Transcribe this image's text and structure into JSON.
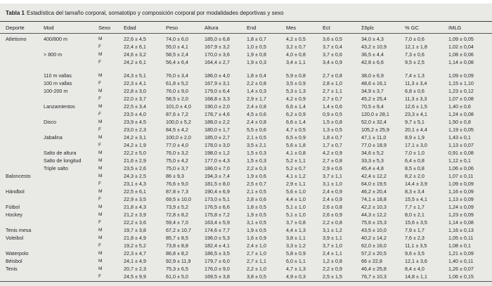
{
  "title": {
    "label": "Tabla 1",
    "text": "Estadística del tamaño corporal, somatotipo y composición corporal por modalidades deportivas y sexo"
  },
  "table": {
    "columns": [
      "Deporte",
      "Mod",
      "Sexo",
      "Edad",
      "Peso",
      "Altura",
      "End",
      "Mes",
      "Ect",
      "Σ6plc",
      "% GC",
      "IMLG"
    ],
    "column_keys": [
      "deporte",
      "mod",
      "sexo",
      "edad",
      "peso",
      "altura",
      "end",
      "mes",
      "ect",
      "sum6plc",
      "pct-gc",
      "imlg"
    ],
    "group_break_after": [
      3
    ],
    "rows": [
      [
        "Atletismo",
        "400/800 m",
        "M",
        "22,6 ± 4,5",
        "74,0 ± 6,0",
        "185,0 ± 6,8",
        "1,8 ± 0,7",
        "4,2 ± 0,5",
        "3,6 ± 0,5",
        "34,0 ± 4,3",
        "7,0 ± 0,6",
        "1,09 ± 0,05"
      ],
      [
        "",
        "",
        "F",
        "22,4 ± 6,1",
        "55,0 ± 4,1",
        "167,9 ± 3,2",
        "1,0 ± 0,5",
        "3,2 ± 0,7",
        "3,7 ± 0,4",
        "43,2 ± 10,9",
        "12,1 ± 1,8",
        "1,02 ± 0,04"
      ],
      [
        "",
        "> 800 m",
        "M",
        "24,6 ± 3,2",
        "58,5 ± 2,4",
        "170,0 ± 3,6",
        "1,9 ± 0,8",
        "4,0 ± 0,8",
        "3,7 ± 0,6",
        "36,5 ± 4,4",
        "7,3 ± 0,6",
        "1,08 ± 0,06"
      ],
      [
        "",
        "",
        "F",
        "24,2 ± 6,1",
        "56,4 ± 6,4",
        "164,4 ± 2,7",
        "1,9 ± 0,3",
        "3,4 ± 1,1",
        "3,4 ± 0,9",
        "42,8 ± 6,6",
        "9,5 ± 2,5",
        "1,14 ± 0,08"
      ],
      [
        "",
        "110 m vallas",
        "M",
        "24,3 ± 5,1",
        "76,0 ± 3,4",
        "186,0 ± 4,0",
        "1,8 ± 0,4",
        "5,9 ± 0,8",
        "2,7 ± 0,8",
        "38,0 ± 6,9",
        "7,4 ± 1,3",
        "1,09 ± 0,09"
      ],
      [
        "",
        "100 m vallas",
        "F",
        "22,3 ± 4,1",
        "61,8 ± 5,2",
        "167,9 ± 3,1",
        "2,2 ± 0,8",
        "3,5 ± 0,9",
        "2,8 ± 1,0",
        "48,6 ± 16,1",
        "11,3 ± 3,4",
        "1,15 ± 1,10"
      ],
      [
        "",
        "100-200 m",
        "M",
        "22,8 ± 3,0",
        "76,0 ± 9,0",
        "179,0 ± 6,4",
        "1,4 ± 0,3",
        "5,3 ± 1,3",
        "2,7 ± 1,1",
        "34,9 ± 3,7",
        "6,8 ± 0,6",
        "1,23 ± 0,12"
      ],
      [
        "",
        "",
        "F",
        "22,0 ± 3,7",
        "58,5 ± 2,0",
        "168,8 ± 3,3",
        "2,9 ± 1,7",
        "4,2 ± 0,9",
        "2,7 ± 0,7",
        "45,2 ± 25,4",
        "11,3 ± 3,3",
        "1,07 ± 0,08"
      ],
      [
        "",
        "Lanzamientos",
        "M",
        "22,5 ± 3,4",
        "101,0 ± 4,0",
        "190,0 ± 2,0",
        "2,4 ± 0,8",
        "6,6 ± 1,4",
        "1,4 ± 0,6",
        "70,5 ± 9,4",
        "12,6 ± 1,5",
        "1,40 ± 0,6"
      ],
      [
        "",
        "",
        "F",
        "23,5 ± 4,0",
        "87,6 ± 7,2",
        "178,7 ± 4,6",
        "4,5 ± 0,6",
        "6,2 ± 0,9",
        "0,9 ± 0,5",
        "120,0 ± 28,1",
        "23,3 ± 4,1",
        "1,24 ± 0,08"
      ],
      [
        "",
        "Disco",
        "M",
        "23,9 ± 4,5",
        "100,0 ± 5,2",
        "188,0 ± 2,2",
        "2,4 ± 0,8",
        "6,6 ± 1,4",
        "1,5 ± 0,8",
        "52,0 ± 32,4",
        "9,7 ± 5,1",
        "1,50 ± 0,8"
      ],
      [
        "",
        "",
        "F",
        "23,0 ± 2,3",
        "84,5 ± 4,2",
        "180,0 ± 1,7",
        "5,5 ± 0,6",
        "4,7 ± 0,5",
        "1,3 ± 0,5",
        "105,2 ± 25,9",
        "20,1 ± 4,4",
        "1,19 ± 0,05"
      ],
      [
        "",
        "Jabalina",
        "M",
        "24,2 ± 3,1",
        "100,0 ± 2,0",
        "185,0 ± 2,7",
        "2,1 ± 0,5",
        "6,5 ± 0,9",
        "1,8 ± 0,7",
        "47,1 ± 11,0",
        "8,9 ± 1,9",
        "1,43 ± 0,1"
      ],
      [
        "",
        "",
        "F",
        "24,2 ± 1,9",
        "77,0 ± 4,0",
        "178,0 ± 3,0",
        "3,5 ± 2,1",
        "5,6 ± 1,8",
        "1,7 ± 0,7",
        "77,0 ± 18,9",
        "17,1 ± 3,0",
        "1,13 ± 0,07"
      ],
      [
        "",
        "Salto de altura",
        "M",
        "22,2 ± 5,0",
        "76,0 ± 3,2",
        "198,0 ± 1,2",
        "1,5 ± 0,3",
        "4,1 ± 0,8",
        "4,2 ± 0,9",
        "34,6 ± 5,2",
        "7,0 ± 1,0",
        "0,91 ± 0,08"
      ],
      [
        "",
        "Salto de longitud",
        "M",
        "21,6 ± 2,9",
        "75,0 ± 4,2",
        "177,0 ± 4,3",
        "1,5 ± 0,3",
        "5,2 ± 1,1",
        "2,7 ± 0,8",
        "33,3 ± 5,3",
        "6,4 ± 0,8",
        "1,12 ± 0,1"
      ],
      [
        "",
        "Triple salto",
        "M",
        "23,5 ± 2,6",
        "75,0 ± 3,7",
        "186,0 ± 7,0",
        "2,2 ± 0,3",
        "5,2 ± 0,7",
        "2,9 ± 0,6",
        "45,4 ± 4,8",
        "8,5 ± 0,8",
        "1,06 ± 0,06"
      ],
      [
        "Baloncesto",
        "",
        "M",
        "24,3 ± 2,5",
        "86 ± 9,3",
        "194,3 ± 7,4",
        "1,9 ± 0,6",
        "4,1 ± 1,2",
        "3,7 ± 1,1",
        "42,4 ± 12,2",
        "8,2 ± 2,0",
        "1,07 ± 0,11"
      ],
      [
        "",
        "",
        "F",
        "23,1 ± 4,3",
        "76,6 ± 9,0",
        "181,5 ± 8,0",
        "2,5 ± 0,7",
        "2,9 ± 1,1",
        "3,1 ± 1,0",
        "64,0 ± 19,5",
        "14,4 ± 3,9",
        "1,09 ± 0,09"
      ],
      [
        "Hándbol",
        "",
        "M",
        "22,5 ± 6,1",
        "87,8 ± 7,3",
        "190,4 ± 6,9",
        "2,1 ± 0,5",
        "5,6 ± 1,0",
        "2,4 ± 0,9",
        "46,2 ± 20,4",
        "8,3 ± 3,4",
        "1,16 ± 0,09"
      ],
      [
        "",
        "",
        "F",
        "22,9 ± 3,5",
        "69,5 ± 10,0",
        "173,0 ± 5,1",
        "2,8 ± 0,6",
        "4,4 ± 1,0",
        "2,4 ± 0,9",
        "74,1 ± 18,8",
        "15,5 ± 4,1",
        "1,13 ± 0,09"
      ],
      [
        "Fútbol",
        "",
        "M",
        "21,8 ± 4,3",
        "73,9 ± 5,2",
        "176,5 ± 6,6",
        "1,8 ± 0,5",
        "5,1 ± 1,0",
        "2,6 ± 0,8",
        "42,2 ± 10,3",
        "7,7 ± 1,7",
        "1,24 ± 0,09"
      ],
      [
        "Hockey",
        "",
        "M",
        "21,2 ± 3,9",
        "72,8 ± 8,2",
        "175,8 ± 7,2",
        "1,9 ± 0,5",
        "5,1 ± 1,0",
        "2,6 ± 0,9",
        "44,3 ± 12,2",
        "8,0 ± 2,1",
        "1,23 ± 0,09"
      ],
      [
        "",
        "",
        "F",
        "22,2 ± 3,6",
        "59,4 ± 7,0",
        "163,4 ± 5,9",
        "3,1 ± 0,5",
        "3,7 ± 0,8",
        "2,2 ± 0,8",
        "75,6 ± 15,3",
        "15,6 ± 3,5",
        "1,14 ± 0,08"
      ],
      [
        "Tenis mesa",
        "",
        "M",
        "19,7 ± 3,8",
        "67,2 ± 10,7",
        "174,6 ± 7,7",
        "1,9 ± 0,5",
        "4,4 ± 1,3",
        "3,1 ± 1,2",
        "43,5 ± 10,0",
        "7,9 ± 1,7",
        "1,16 ± 0,13"
      ],
      [
        "Voleibol",
        "",
        "M",
        "21,8 ± 4,9",
        "85,7 ± 8,5",
        "196,0 ± 5,3",
        "1,6 ± 0,9",
        "3,8 ± 1,1",
        "3,9 ± 1,1",
        "40,2 ± 14,2",
        "7,6 ± 2,3",
        "1,05 ± 0,11"
      ],
      [
        "",
        "",
        "F",
        "19,2 ± 5,2",
        "73,8 ± 8,8",
        "182,4 ± 4,1",
        "2,4 ± 1,0",
        "3,3 ± 1,2",
        "3,7 ± 1,0",
        "62,0 ± 16,0",
        "11,1 ± 3,5",
        "1,08 ± 0,1"
      ],
      [
        "Waterpolo",
        "",
        "M",
        "22,3 ± 4,7",
        "86,8 ± 8,2",
        "186,5 ± 3,5",
        "2,7 ± 1,0",
        "5,8 ± 0,9",
        "2,4 ± 1,1",
        "57,2 ± 20,5",
        "9,6 ± 3,5",
        "1,21 ± 0,09"
      ],
      [
        "Béisbol",
        "",
        "M",
        "24,1 ± 4,9",
        "92,9 ± 11,9",
        "179,7 ± 6,0",
        "2,7 ± 1,1",
        "6,0 ± 1,1",
        "1,2 ± 0,8",
        "66 ± 22,8",
        "12,1 ± 3,6",
        "1,40 ± 0,11"
      ],
      [
        "Tenis",
        "",
        "M",
        "20,7 ± 2,3",
        "75,3 ± 6,5",
        "176,0 ± 9,0",
        "2,2 ± 1,0",
        "4,7 ± 1,3",
        "2,2 ± 0,9",
        "46,4 ± 25,8",
        "8,4 ± 4,0",
        "1,26 ± 0,07"
      ],
      [
        "",
        "",
        "F",
        "24,5 ± 9,9",
        "61,0 ± 5,0",
        "169,5 ± 3,8",
        "3,8 ± 0,5",
        "4,9 ± 0,3",
        "2,5 ± 1,5",
        "76,7 ± 10,3",
        "14,8 ± 1,1",
        "1,06 ± 0,15"
      ]
    ]
  }
}
